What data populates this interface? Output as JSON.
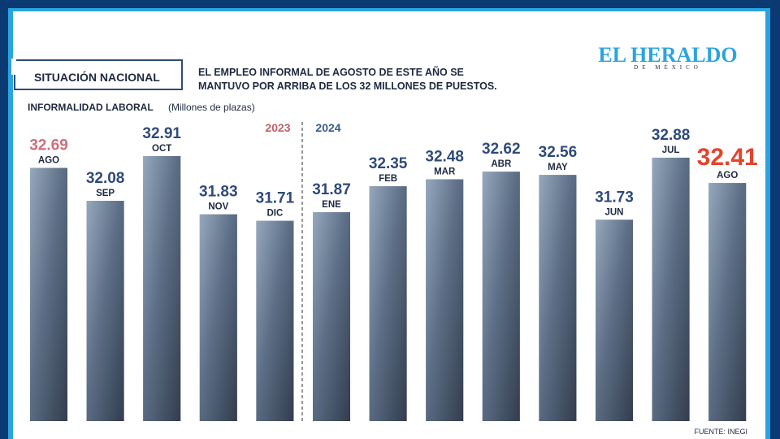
{
  "chart_data": {
    "type": "bar",
    "section": "SITUACIÓN NACIONAL",
    "subtitle_lines": [
      "EL EMPLEO INFORMAL DE AGOSTO DE ESTE AÑO SE",
      "MANTUVO POR ARRIBA DE LOS 32 MILLONES DE PUESTOS."
    ],
    "title": "INFORMALIDAD LABORAL",
    "unit": "(Millones de plazas)",
    "years": [
      "2023",
      "2024"
    ],
    "year_colors": [
      "#c0606b",
      "#3b5b8c"
    ],
    "logo": "EL HERALDO",
    "logo_sub": "DE MÉXICO",
    "source": "FUENTE: INEGI",
    "categories": [
      "AGO",
      "SEP",
      "OCT",
      "NOV",
      "DIC",
      "ENE",
      "FEB",
      "MAR",
      "ABR",
      "MAY",
      "JUN",
      "JUL",
      "AGO"
    ],
    "values": [
      32.69,
      32.08,
      32.91,
      31.83,
      31.71,
      31.87,
      32.35,
      32.48,
      32.62,
      32.56,
      31.73,
      32.88,
      32.41
    ],
    "value_label_colors": [
      "#cf6e7b",
      "#2f4a7a",
      "#2f4a7a",
      "#2f4a7a",
      "#2f4a7a",
      "#2f4a7a",
      "#2f4a7a",
      "#2f4a7a",
      "#2f4a7a",
      "#2f4a7a",
      "#2f4a7a",
      "#2f4a7a",
      "#e5432a"
    ],
    "color": "#5d6f86",
    "ylim": [
      28,
      33
    ]
  }
}
